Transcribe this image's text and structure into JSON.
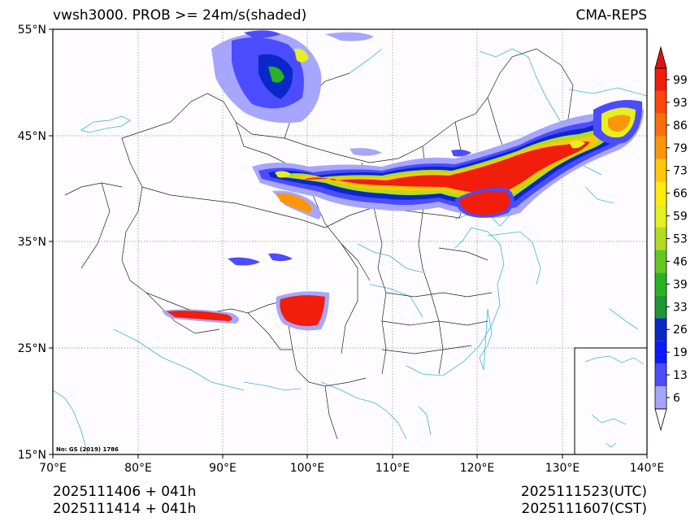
{
  "header": {
    "title_left": "vwsh3000. PROB >= 24m/s(shaded)",
    "title_right": "CMA-REPS"
  },
  "axes": {
    "lat_labels": [
      "55°N",
      "45°N",
      "35°N",
      "25°N",
      "15°N"
    ],
    "lon_labels": [
      "70°E",
      "80°E",
      "90°E",
      "100°E",
      "110°E",
      "120°E",
      "130°E",
      "140°E"
    ]
  },
  "map_note": "No: GS (2019) 1786",
  "footer": {
    "init_utc": "2025111406  +  041h",
    "init_cst": "2025111414  +  041h",
    "valid_utc": "2025111523(UTC)",
    "valid_cst": "2025111607(CST)"
  },
  "colorbar": {
    "levels": [
      "99",
      "93",
      "86",
      "79",
      "73",
      "66",
      "59",
      "53",
      "46",
      "39",
      "33",
      "26",
      "19",
      "13",
      "6"
    ],
    "colors_bottom_to_top": [
      "#a6a6ff",
      "#4c4cff",
      "#0a1cff",
      "#0a28c8",
      "#1e9632",
      "#28b41e",
      "#64c81e",
      "#b4dc1e",
      "#e6f01e",
      "#ffeb0a",
      "#ffc80a",
      "#ff960a",
      "#ff6e0a",
      "#ff460a",
      "#f01e0a"
    ],
    "top_color": "#e0140a"
  }
}
